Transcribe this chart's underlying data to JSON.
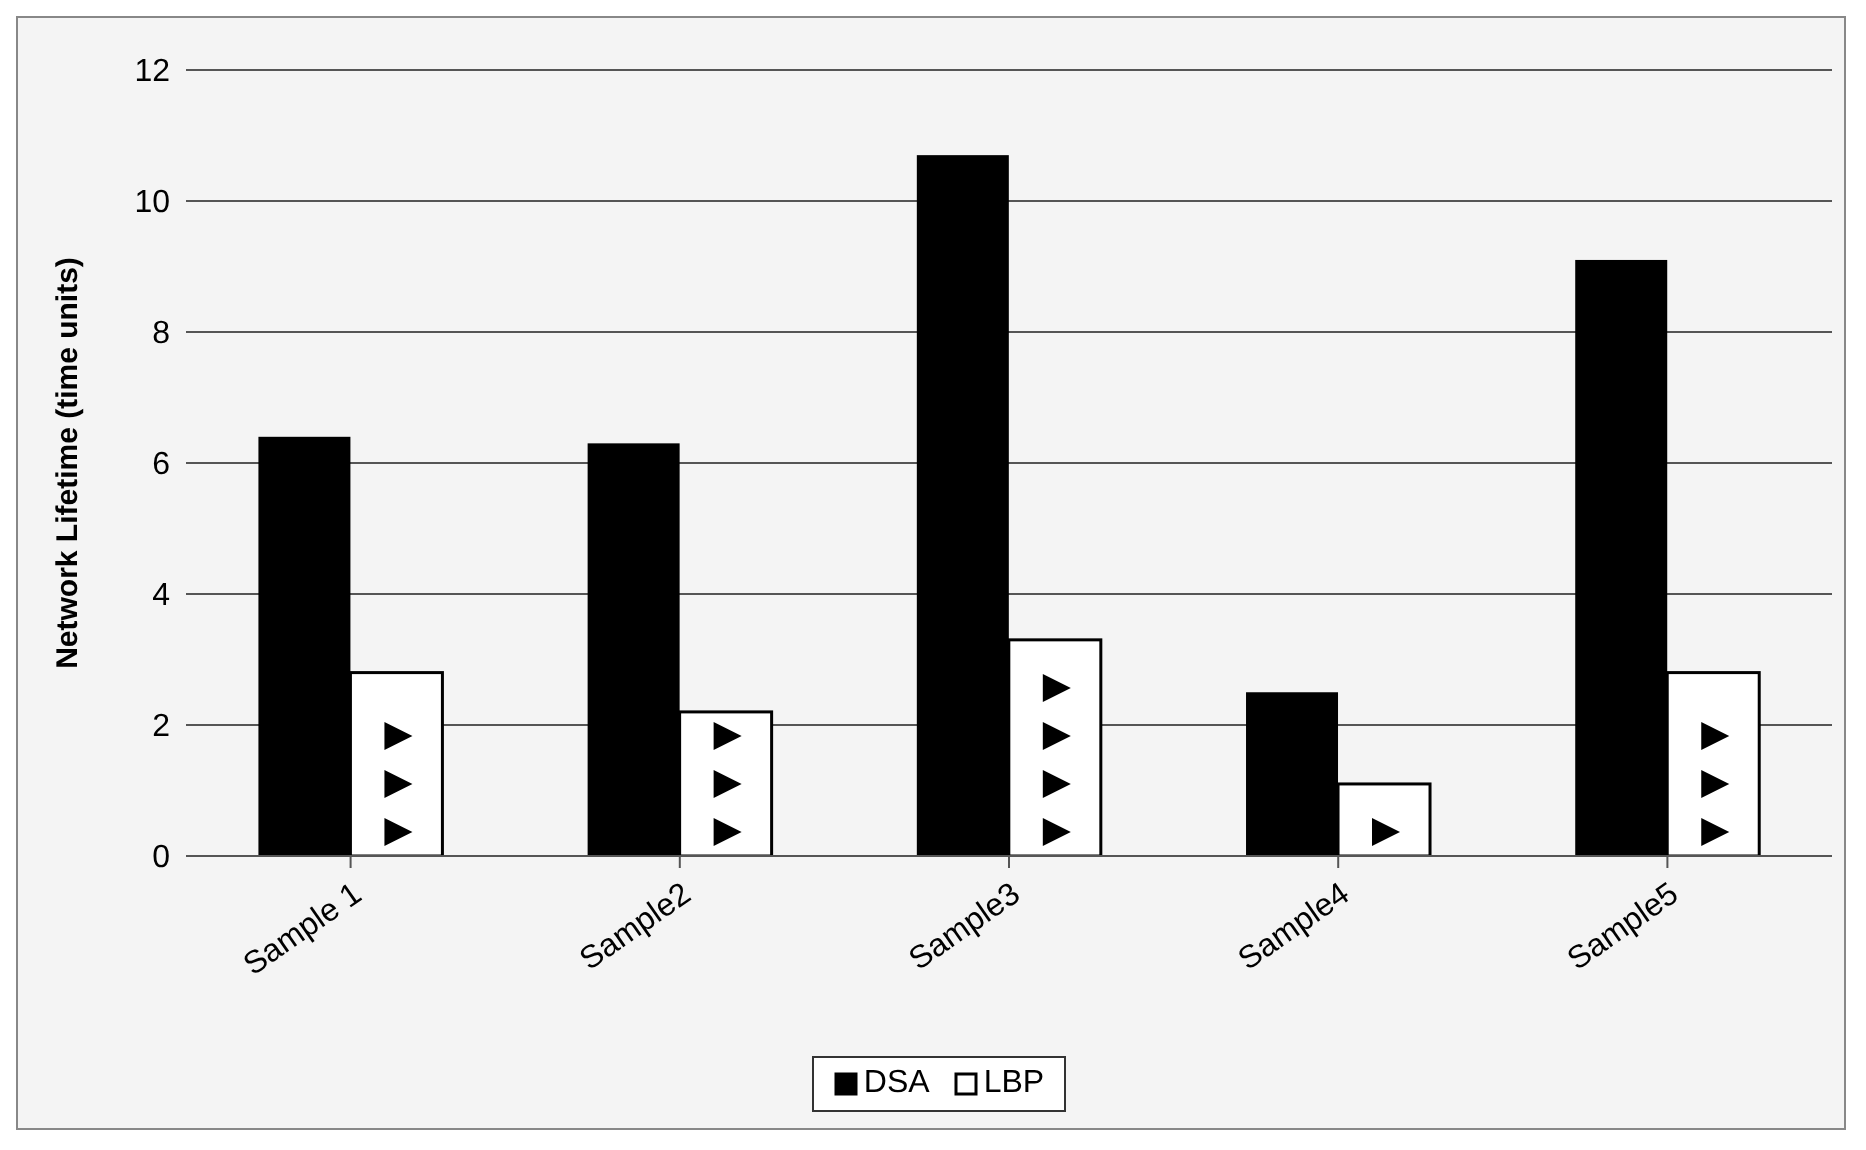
{
  "chart_data": {
    "type": "bar",
    "ylabel": "Network Lifetime (time units)",
    "categories": [
      "Sample 1",
      "Sample2",
      "Sample3",
      "Sample4",
      "Sample5"
    ],
    "series": [
      {
        "name": "DSA",
        "color": "#000000",
        "values": [
          6.4,
          6.3,
          10.7,
          2.5,
          9.1
        ]
      },
      {
        "name": "LBP",
        "color": "#ffffff",
        "values": [
          2.8,
          2.2,
          3.3,
          1.1,
          2.8
        ]
      }
    ],
    "ylim": [
      0,
      12
    ],
    "yticks": [
      0,
      2,
      4,
      6,
      8,
      10,
      12
    ],
    "grid": "y",
    "legend": "bottom"
  }
}
